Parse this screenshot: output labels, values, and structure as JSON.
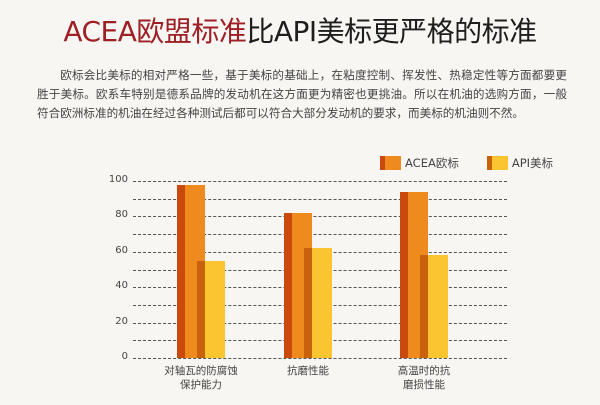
{
  "header": {
    "title_highlight": "ACEA欧盟标准",
    "title_rest": "比API美标更严格的标准"
  },
  "body_text": "欧标会比美标的相对严格一些，基于美标的基础上，在粘度控制、挥发性、热稳定性等方面都要更胜于美标。欧系车特别是德系品牌的发动机在这方面更为精密也更挑油。所以在机油的选购方面，一般符合欧洲标准的机油在经过各种测试后都可以符合大部分发动机的要求，而美标的机油则不然。",
  "colors": {
    "acea": "#ef8a1f",
    "acea_dark": "#c94a0c",
    "api": "#fbc531",
    "api_dark": "#c8620c",
    "title_highlight": "#9e1f24"
  },
  "chart_data": {
    "type": "bar",
    "title": "",
    "xlabel": "",
    "ylabel": "",
    "categories": [
      "对轴瓦的防腐蚀保护能力",
      "抗磨性能",
      "高温时的抗磨损性能"
    ],
    "category_lines": [
      [
        "对轴瓦的防腐蚀",
        "保护能力"
      ],
      [
        "抗磨性能"
      ],
      [
        "高温时的抗",
        "磨损性能"
      ]
    ],
    "series": [
      {
        "name": "ACEA欧标",
        "values": [
          98,
          82,
          94
        ]
      },
      {
        "name": "API美标",
        "values": [
          55,
          62,
          58
        ]
      }
    ],
    "ylim": [
      0,
      100
    ],
    "yticks": [
      0,
      20,
      40,
      60,
      80,
      100
    ],
    "grid": true,
    "grid_step": 10,
    "legend_position": "top-right"
  }
}
